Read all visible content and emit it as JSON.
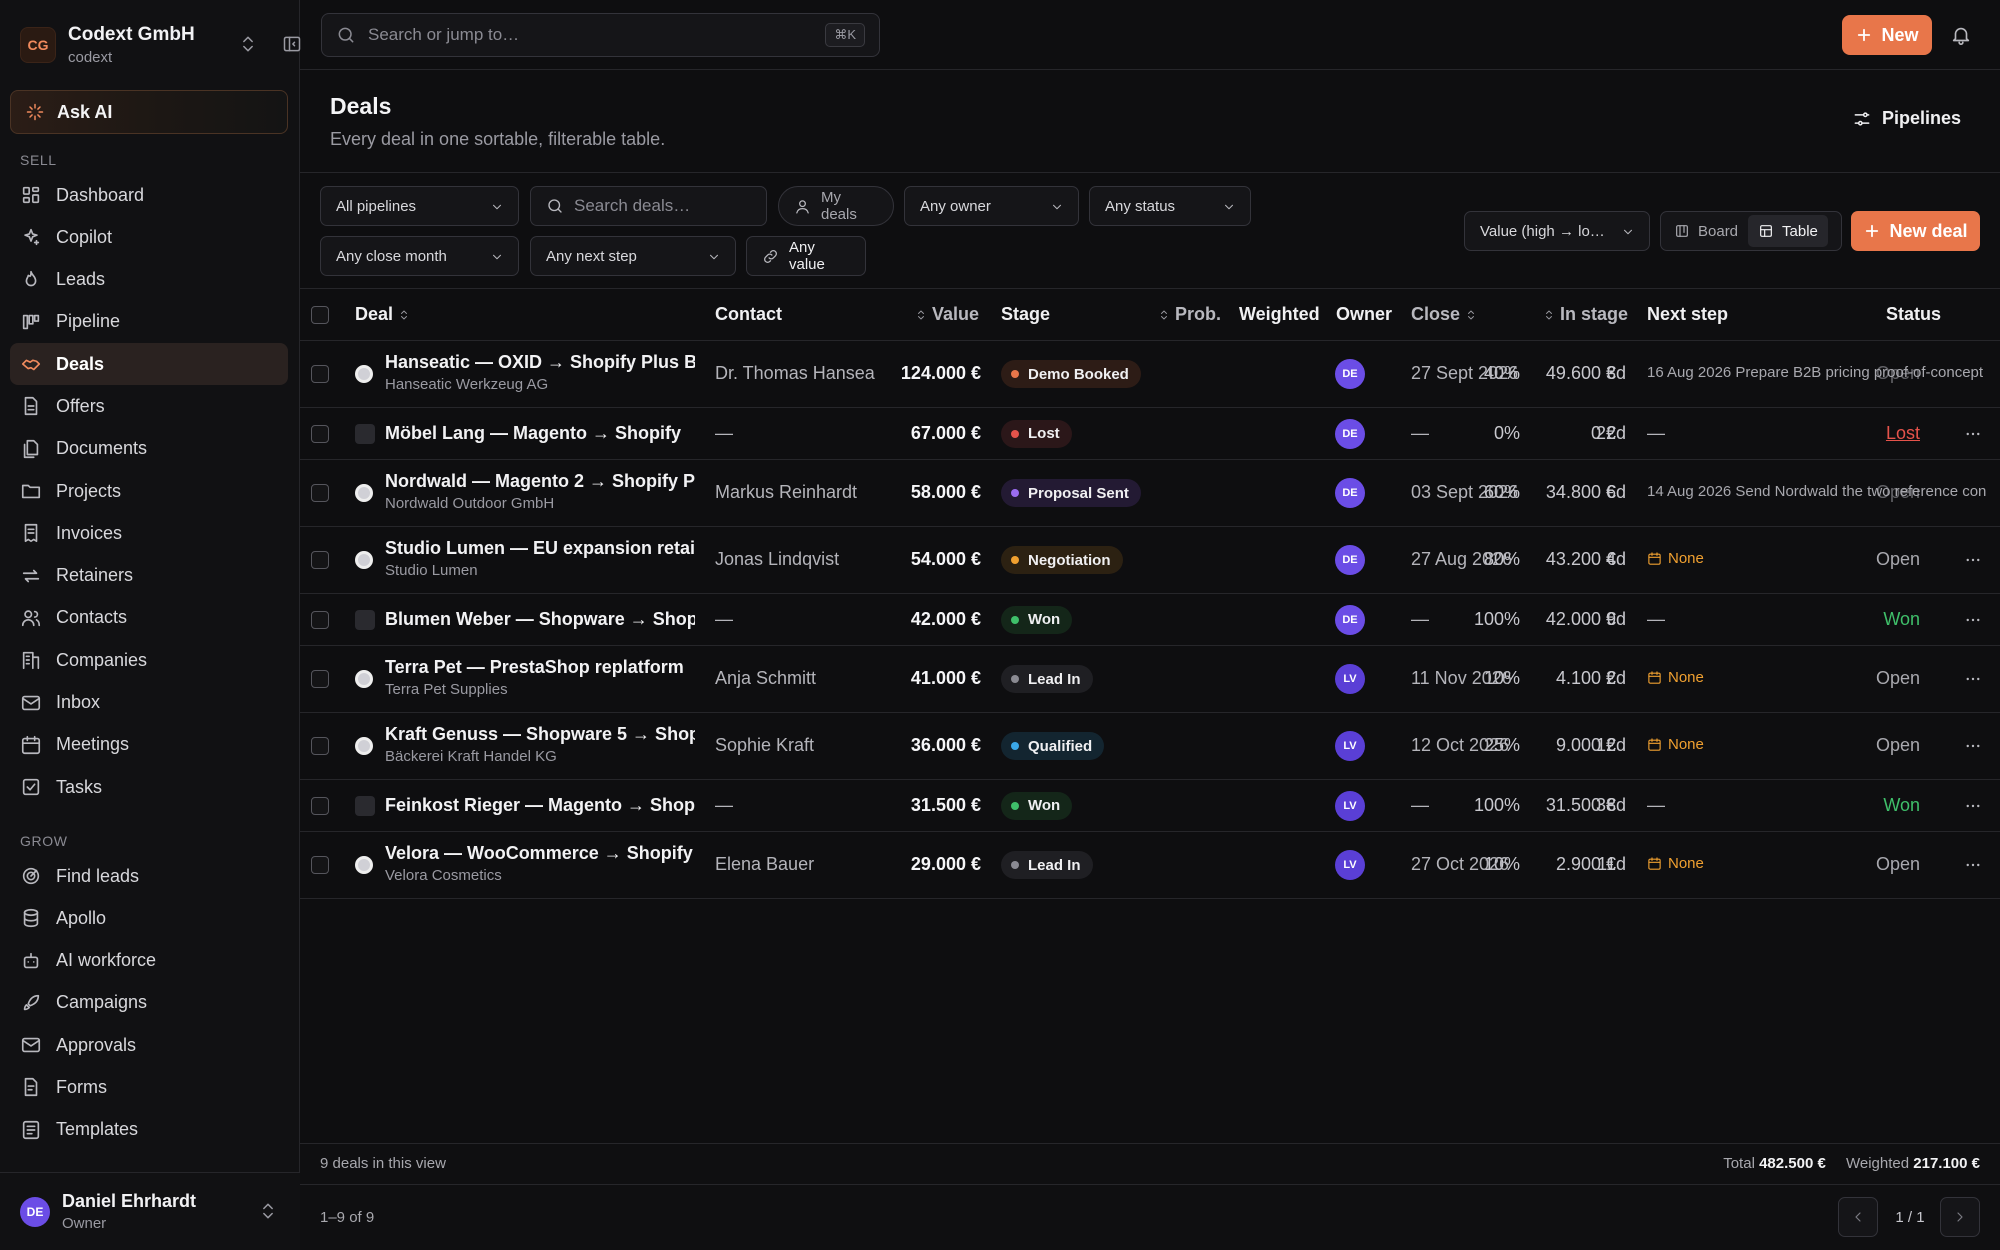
{
  "workspace": {
    "initials": "CG",
    "name": "Codext GmbH",
    "slug": "codext"
  },
  "ask_ai": "Ask AI",
  "sidebar": {
    "sell_label": "SELL",
    "grow_label": "GROW",
    "sell_items": [
      {
        "label": "Dashboard",
        "icon": "dashboard-icon"
      },
      {
        "label": "Copilot",
        "icon": "sparkles-icon"
      },
      {
        "label": "Leads",
        "icon": "flame-icon"
      },
      {
        "label": "Pipeline",
        "icon": "kanban-icon"
      },
      {
        "label": "Deals",
        "icon": "handshake-icon",
        "active": true
      },
      {
        "label": "Offers",
        "icon": "file-text-icon"
      },
      {
        "label": "Documents",
        "icon": "files-icon"
      },
      {
        "label": "Projects",
        "icon": "folder-icon"
      },
      {
        "label": "Invoices",
        "icon": "receipt-icon"
      },
      {
        "label": "Retainers",
        "icon": "repeat-icon"
      },
      {
        "label": "Contacts",
        "icon": "users-icon"
      },
      {
        "label": "Companies",
        "icon": "building-icon"
      },
      {
        "label": "Inbox",
        "icon": "mail-icon"
      },
      {
        "label": "Meetings",
        "icon": "calendar-icon"
      },
      {
        "label": "Tasks",
        "icon": "checkbox-icon"
      }
    ],
    "grow_items": [
      {
        "label": "Find leads",
        "icon": "radar-icon"
      },
      {
        "label": "Apollo",
        "icon": "database-icon"
      },
      {
        "label": "AI workforce",
        "icon": "bot-icon"
      },
      {
        "label": "Campaigns",
        "icon": "rocket-icon"
      },
      {
        "label": "Approvals",
        "icon": "mail-check-icon"
      },
      {
        "label": "Forms",
        "icon": "form-icon"
      },
      {
        "label": "Templates",
        "icon": "template-icon"
      }
    ]
  },
  "user": {
    "initials": "DE",
    "name": "Daniel Ehrhardt",
    "role": "Owner"
  },
  "topbar": {
    "search_placeholder": "Search or jump to…",
    "shortcut": "⌘K",
    "new_label": "New"
  },
  "page": {
    "title": "Deals",
    "subtitle": "Every deal in one sortable, filterable table.",
    "pipelines_label": "Pipelines"
  },
  "filters": {
    "pipelines": "All pipelines",
    "search_placeholder": "Search deals…",
    "my_deals": "My deals",
    "owner": "Any owner",
    "status": "Any status",
    "close_month": "Any close month",
    "next_step": "Any next step",
    "value": "Any value",
    "sort": "Value (high → lo…",
    "view_board": "Board",
    "view_table": "Table",
    "new_deal": "New deal"
  },
  "columns": {
    "deal": "Deal",
    "contact": "Contact",
    "value": "Value",
    "stage": "Stage",
    "prob": "Prob.",
    "weighted": "Weighted",
    "owner": "Owner",
    "close": "Close",
    "in_stage": "In stage",
    "next_step": "Next step",
    "status": "Status"
  },
  "colors": {
    "accent": "#e8764a",
    "owner_de": "#6b4de6",
    "owner_lv": "#5a3fd6",
    "won": "#3fbf6a",
    "lost": "#e5534b",
    "none_flag": "#f0a030"
  },
  "stages": {
    "Demo Booked": {
      "dot": "#e8764a",
      "bg": "#2d1c16"
    },
    "Lost": {
      "dot": "#e5534b",
      "bg": "#2b1719"
    },
    "Proposal Sent": {
      "dot": "#9b6cf0",
      "bg": "#231a33"
    },
    "Negotiation": {
      "dot": "#f0a030",
      "bg": "#2c2112"
    },
    "Won": {
      "dot": "#3fbf6a",
      "bg": "#142619"
    },
    "Lead In": {
      "dot": "#8a8a92",
      "bg": "#1f1f23"
    },
    "Qualified": {
      "dot": "#3aa7e8",
      "bg": "#132530"
    }
  },
  "deals": [
    {
      "name": "Hanseatic — OXID → Shopify Plus B…",
      "company": "Hanseatic Werkzeug AG",
      "logo": "globe",
      "contact": "Dr. Thomas Hanseat",
      "value": "124.000 €",
      "stage": "Demo Booked",
      "prob": "40%",
      "weighted": "49.600 €",
      "owner": "DE",
      "close": "27 Sept 2026",
      "in_stage": "3d",
      "next_step": "16 Aug 2026  Prepare B2B pricing proof-of-concept",
      "next_flag": false,
      "status": "Open",
      "status_kind": "overlap"
    },
    {
      "name": "Möbel Lang — Magento → Shopify",
      "company": "",
      "logo": "square",
      "contact": "—",
      "value": "67.000 €",
      "stage": "Lost",
      "prob": "0%",
      "weighted": "0 €",
      "owner": "DE",
      "close": "—",
      "in_stage": "22d",
      "next_step": "—",
      "next_flag": false,
      "status": "Lost",
      "status_kind": "lost"
    },
    {
      "name": "Nordwald — Magento 2 → Shopify P…",
      "company": "Nordwald Outdoor GmbH",
      "logo": "globe",
      "contact": "Markus Reinhardt",
      "value": "58.000 €",
      "stage": "Proposal Sent",
      "prob": "60%",
      "weighted": "34.800 €",
      "owner": "DE",
      "close": "03 Sept 2026",
      "in_stage": "6d",
      "next_step": "14 Aug 2026  Send Nordwald the two reference con",
      "next_flag": false,
      "status": "Open",
      "status_kind": "overlap"
    },
    {
      "name": "Studio Lumen — EU expansion retain…",
      "company": "Studio Lumen",
      "logo": "globe",
      "contact": "Jonas Lindqvist",
      "value": "54.000 €",
      "stage": "Negotiation",
      "prob": "80%",
      "weighted": "43.200 €",
      "owner": "DE",
      "close": "27 Aug 2026",
      "in_stage": "4d",
      "next_step": "None",
      "next_flag": true,
      "status": "Open",
      "status_kind": "open"
    },
    {
      "name": "Blumen Weber — Shopware → Shop…",
      "company": "",
      "logo": "square",
      "contact": "—",
      "value": "42.000 €",
      "stage": "Won",
      "prob": "100%",
      "weighted": "42.000 €",
      "owner": "DE",
      "close": "—",
      "in_stage": "9d",
      "next_step": "—",
      "next_flag": false,
      "status": "Won",
      "status_kind": "won"
    },
    {
      "name": "Terra Pet — PrestaShop replatform",
      "company": "Terra Pet Supplies",
      "logo": "globe",
      "contact": "Anja Schmitt",
      "value": "41.000 €",
      "stage": "Lead In",
      "prob": "10%",
      "weighted": "4.100 €",
      "owner": "LV",
      "close": "11 Nov 2026",
      "in_stage": "2d",
      "next_step": "None",
      "next_flag": true,
      "status": "Open",
      "status_kind": "open"
    },
    {
      "name": "Kraft Genuss — Shopware 5 → Shop…",
      "company": "Bäckerei Kraft Handel KG",
      "logo": "globe",
      "contact": "Sophie Kraft",
      "value": "36.000 €",
      "stage": "Qualified",
      "prob": "25%",
      "weighted": "9.000 €",
      "owner": "LV",
      "close": "12 Oct 2026",
      "in_stage": "12d",
      "next_step": "None",
      "next_flag": true,
      "status": "Open",
      "status_kind": "open"
    },
    {
      "name": "Feinkost Rieger — Magento → Shopi…",
      "company": "",
      "logo": "square",
      "contact": "—",
      "value": "31.500 €",
      "stage": "Won",
      "prob": "100%",
      "weighted": "31.500 €",
      "owner": "LV",
      "close": "—",
      "in_stage": "38d",
      "next_step": "—",
      "next_flag": false,
      "status": "Won",
      "status_kind": "won"
    },
    {
      "name": "Velora — WooCommerce → Shopify",
      "company": "Velora Cosmetics",
      "logo": "globe",
      "contact": "Elena Bauer",
      "value": "29.000 €",
      "stage": "Lead In",
      "prob": "10%",
      "weighted": "2.900 €",
      "owner": "LV",
      "close": "27 Oct 2026",
      "in_stage": "11d",
      "next_step": "None",
      "next_flag": true,
      "status": "Open",
      "status_kind": "open"
    }
  ],
  "footer": {
    "count": "9 deals in this view",
    "total_label": "Total",
    "total_value": "482.500 €",
    "weighted_label": "Weighted",
    "weighted_value": "217.100 €",
    "range": "1–9 of 9",
    "page": "1 / 1"
  }
}
